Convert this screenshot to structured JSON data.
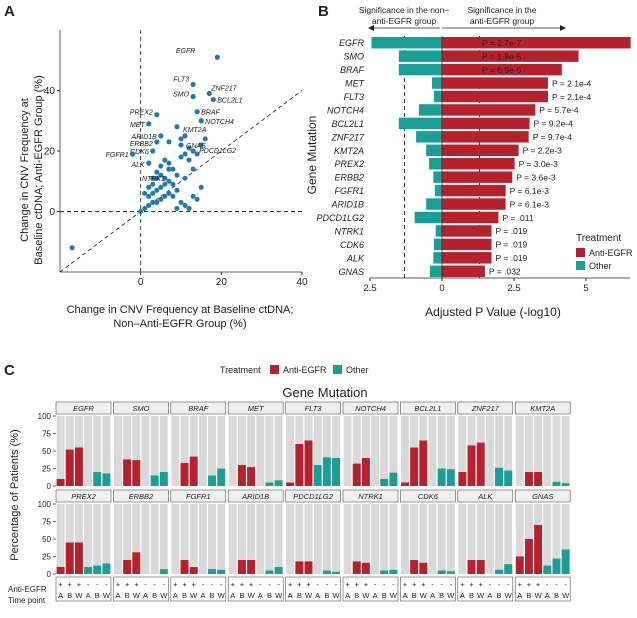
{
  "colors": {
    "anti_egfr": "#b5222e",
    "other": "#1a9e96",
    "scatter": "#1f77b4",
    "facet_bg": "#d9d9d9",
    "strip_bg": "#f0f0f0"
  },
  "panel_a": {
    "letter": "A",
    "ylabel_lines": [
      "Change in CNV Frequency at",
      "Baseline ctDNA; Anti-EGFR Group (%)"
    ],
    "xlabel_lines": [
      "Change in CNV Frequency at Baseline ctDNA;",
      "Non–Anti-EGFR Group (%)"
    ],
    "chart_data": {
      "type": "scatter",
      "xlim": [
        -20,
        40
      ],
      "ylim": [
        -20,
        60
      ],
      "xticks": [
        0,
        20,
        40
      ],
      "yticks": [
        0,
        20,
        40
      ],
      "labeled_points": [
        {
          "label": "EGFR",
          "x": 19,
          "y": 51
        },
        {
          "label": "FLT3",
          "x": 13,
          "y": 42
        },
        {
          "label": "ZNF217",
          "x": 17,
          "y": 39
        },
        {
          "label": "SMO",
          "x": 13,
          "y": 38
        },
        {
          "label": "BCL2L1",
          "x": 18,
          "y": 37
        },
        {
          "label": "BRAF",
          "x": 14,
          "y": 33
        },
        {
          "label": "PREX2",
          "x": 4,
          "y": 32
        },
        {
          "label": "NOTCH4",
          "x": 15,
          "y": 30
        },
        {
          "label": "MET",
          "x": 2,
          "y": 29
        },
        {
          "label": "KMT2A",
          "x": 11,
          "y": 25
        },
        {
          "label": "ARID1B",
          "x": 5,
          "y": 25
        },
        {
          "label": "ERBB2",
          "x": 4,
          "y": 23
        },
        {
          "label": "GNAS",
          "x": 10,
          "y": 22
        },
        {
          "label": "PDCD1LG2",
          "x": 13,
          "y": 20
        },
        {
          "label": "CDK6",
          "x": 3,
          "y": 20
        },
        {
          "label": "FGFR1",
          "x": -2,
          "y": 19
        },
        {
          "label": "ALK",
          "x": 2,
          "y": 16
        },
        {
          "label": "NTRK1",
          "x": 7,
          "y": 14
        }
      ],
      "other_points": [
        [
          -17,
          -12
        ],
        [
          0,
          0
        ],
        [
          1,
          1
        ],
        [
          2,
          2
        ],
        [
          3,
          3
        ],
        [
          4,
          3
        ],
        [
          5,
          4
        ],
        [
          6,
          5
        ],
        [
          2,
          5
        ],
        [
          3,
          6
        ],
        [
          4,
          7
        ],
        [
          5,
          8
        ],
        [
          6,
          9
        ],
        [
          7,
          10
        ],
        [
          3,
          9
        ],
        [
          4,
          11
        ],
        [
          5,
          12
        ],
        [
          6,
          11
        ],
        [
          7,
          6
        ],
        [
          8,
          5
        ],
        [
          9,
          7
        ],
        [
          10,
          3
        ],
        [
          11,
          2
        ],
        [
          12,
          1
        ],
        [
          13,
          5
        ],
        [
          14,
          4
        ],
        [
          15,
          8
        ],
        [
          9,
          12
        ],
        [
          8,
          14
        ],
        [
          7,
          16
        ],
        [
          10,
          18
        ],
        [
          11,
          19
        ],
        [
          12,
          21
        ],
        [
          1,
          6
        ],
        [
          2,
          8
        ],
        [
          3,
          11
        ],
        [
          5,
          15
        ],
        [
          6,
          17
        ],
        [
          4,
          13
        ],
        [
          8,
          9
        ],
        [
          9,
          1
        ],
        [
          11,
          11
        ],
        [
          13,
          14
        ],
        [
          14,
          19
        ],
        [
          15,
          22
        ],
        [
          16,
          24
        ],
        [
          12,
          17
        ],
        [
          10,
          24
        ],
        [
          9,
          28
        ],
        [
          7,
          23
        ]
      ]
    }
  },
  "panel_b": {
    "letter": "B",
    "header_left": [
      "Significance in the non–",
      "anti-EGFR group"
    ],
    "header_right": [
      "Significance in the",
      "anti-EGFR group"
    ],
    "ylabel": "Gene Mutation",
    "xlabel": "Adjusted P Value (-log10)",
    "legend_title": "Treatment",
    "legend_items": [
      "Anti-EGFR",
      "Other"
    ],
    "chart_data": {
      "type": "bar",
      "orientation": "diverging-horizontal",
      "xlim": [
        -2.5,
        6.5
      ],
      "xticks": [
        "2.5",
        "0",
        "2.5",
        "5"
      ],
      "threshold": 1.3,
      "genes": [
        "EGFR",
        "SMO",
        "BRAF",
        "MET",
        "FLT3",
        "NOTCH4",
        "BCL2L1",
        "ZNF217",
        "KMT2A",
        "PREX2",
        "ERBB2",
        "FGFR1",
        "ARID1B",
        "PDCD1LG2",
        "NTRK1",
        "CDK6",
        "ALK",
        "GNAS"
      ],
      "anti_egfr": [
        6.55,
        4.74,
        4.16,
        3.68,
        3.68,
        3.24,
        3.04,
        3.01,
        2.66,
        2.52,
        2.44,
        2.21,
        2.21,
        1.96,
        1.72,
        1.72,
        1.72,
        1.49
      ],
      "other": [
        2.45,
        1.5,
        1.5,
        0.35,
        0.28,
        0.8,
        1.5,
        0.9,
        0.55,
        0.45,
        0.3,
        0.25,
        0.55,
        0.95,
        0.22,
        0.28,
        0.3,
        0.42
      ],
      "p_labels": [
        "P = 2.7e-7",
        "P = 1.8e-5",
        "P = 6.9e-5",
        "P = 2.1e-4",
        "P = 2.1e-4",
        "P = 5.7e-4",
        "P = 9.2e-4",
        "P = 9.7e-4",
        "P = 2.2e-3",
        "P = 3.0e-3",
        "P = 3.6e-3",
        "P = 6.1e-3",
        "P = 6.1e-3",
        "P = .011",
        "P = .019",
        "P = .019",
        "P = .019",
        "P = .032"
      ]
    }
  },
  "panel_c": {
    "letter": "C",
    "legend_title": "Treatment",
    "legend_items": [
      "Anti-EGFR",
      "Other"
    ],
    "title": "Gene Mutation",
    "ylabel": "Percentage of Patients (%)",
    "yticks": [
      0,
      25,
      50,
      75,
      100
    ],
    "row_label_anti": "Anti-EGFR",
    "row_label_time": "Time point",
    "anti_markers": [
      "+",
      "+",
      "+",
      "-",
      "-",
      "-"
    ],
    "time_markers": [
      "A",
      "B",
      "W",
      "A",
      "B",
      "W"
    ],
    "chart_data": {
      "type": "bar",
      "ylim": [
        0,
        100
      ],
      "facets": [
        {
          "gene": "EGFR",
          "values": [
            10,
            52,
            55,
            0,
            20,
            18
          ]
        },
        {
          "gene": "SMO",
          "values": [
            0,
            38,
            37,
            0,
            15,
            20
          ]
        },
        {
          "gene": "BRAF",
          "values": [
            0,
            33,
            42,
            0,
            15,
            25
          ]
        },
        {
          "gene": "MET",
          "values": [
            0,
            30,
            27,
            0,
            5,
            8
          ]
        },
        {
          "gene": "FLT3",
          "values": [
            5,
            60,
            65,
            30,
            41,
            40
          ]
        },
        {
          "gene": "NOTCH4",
          "values": [
            0,
            32,
            40,
            0,
            10,
            19
          ]
        },
        {
          "gene": "BCL2L1",
          "values": [
            5,
            55,
            65,
            0,
            25,
            24
          ]
        },
        {
          "gene": "ZNF217",
          "values": [
            20,
            58,
            62,
            0,
            26,
            22
          ]
        },
        {
          "gene": "KMT2A",
          "values": [
            0,
            20,
            20,
            0,
            6,
            4
          ]
        },
        {
          "gene": "PREX2",
          "values": [
            10,
            45,
            45,
            10,
            12,
            15
          ]
        },
        {
          "gene": "ERBB2",
          "values": [
            0,
            20,
            31,
            0,
            0,
            7
          ]
        },
        {
          "gene": "FGFR1",
          "values": [
            0,
            20,
            10,
            0,
            7,
            6
          ]
        },
        {
          "gene": "ARID1B",
          "values": [
            0,
            20,
            20,
            0,
            5,
            10
          ]
        },
        {
          "gene": "PDCD1LG2",
          "values": [
            0,
            18,
            18,
            0,
            5,
            3
          ]
        },
        {
          "gene": "NTRK1",
          "values": [
            0,
            18,
            16,
            0,
            5,
            6
          ]
        },
        {
          "gene": "CDK6",
          "values": [
            0,
            20,
            16,
            0,
            5,
            4
          ]
        },
        {
          "gene": "ALK",
          "values": [
            0,
            20,
            20,
            0,
            6,
            14
          ]
        },
        {
          "gene": "GNAS",
          "values": [
            25,
            50,
            70,
            12,
            22,
            35
          ]
        }
      ]
    }
  }
}
